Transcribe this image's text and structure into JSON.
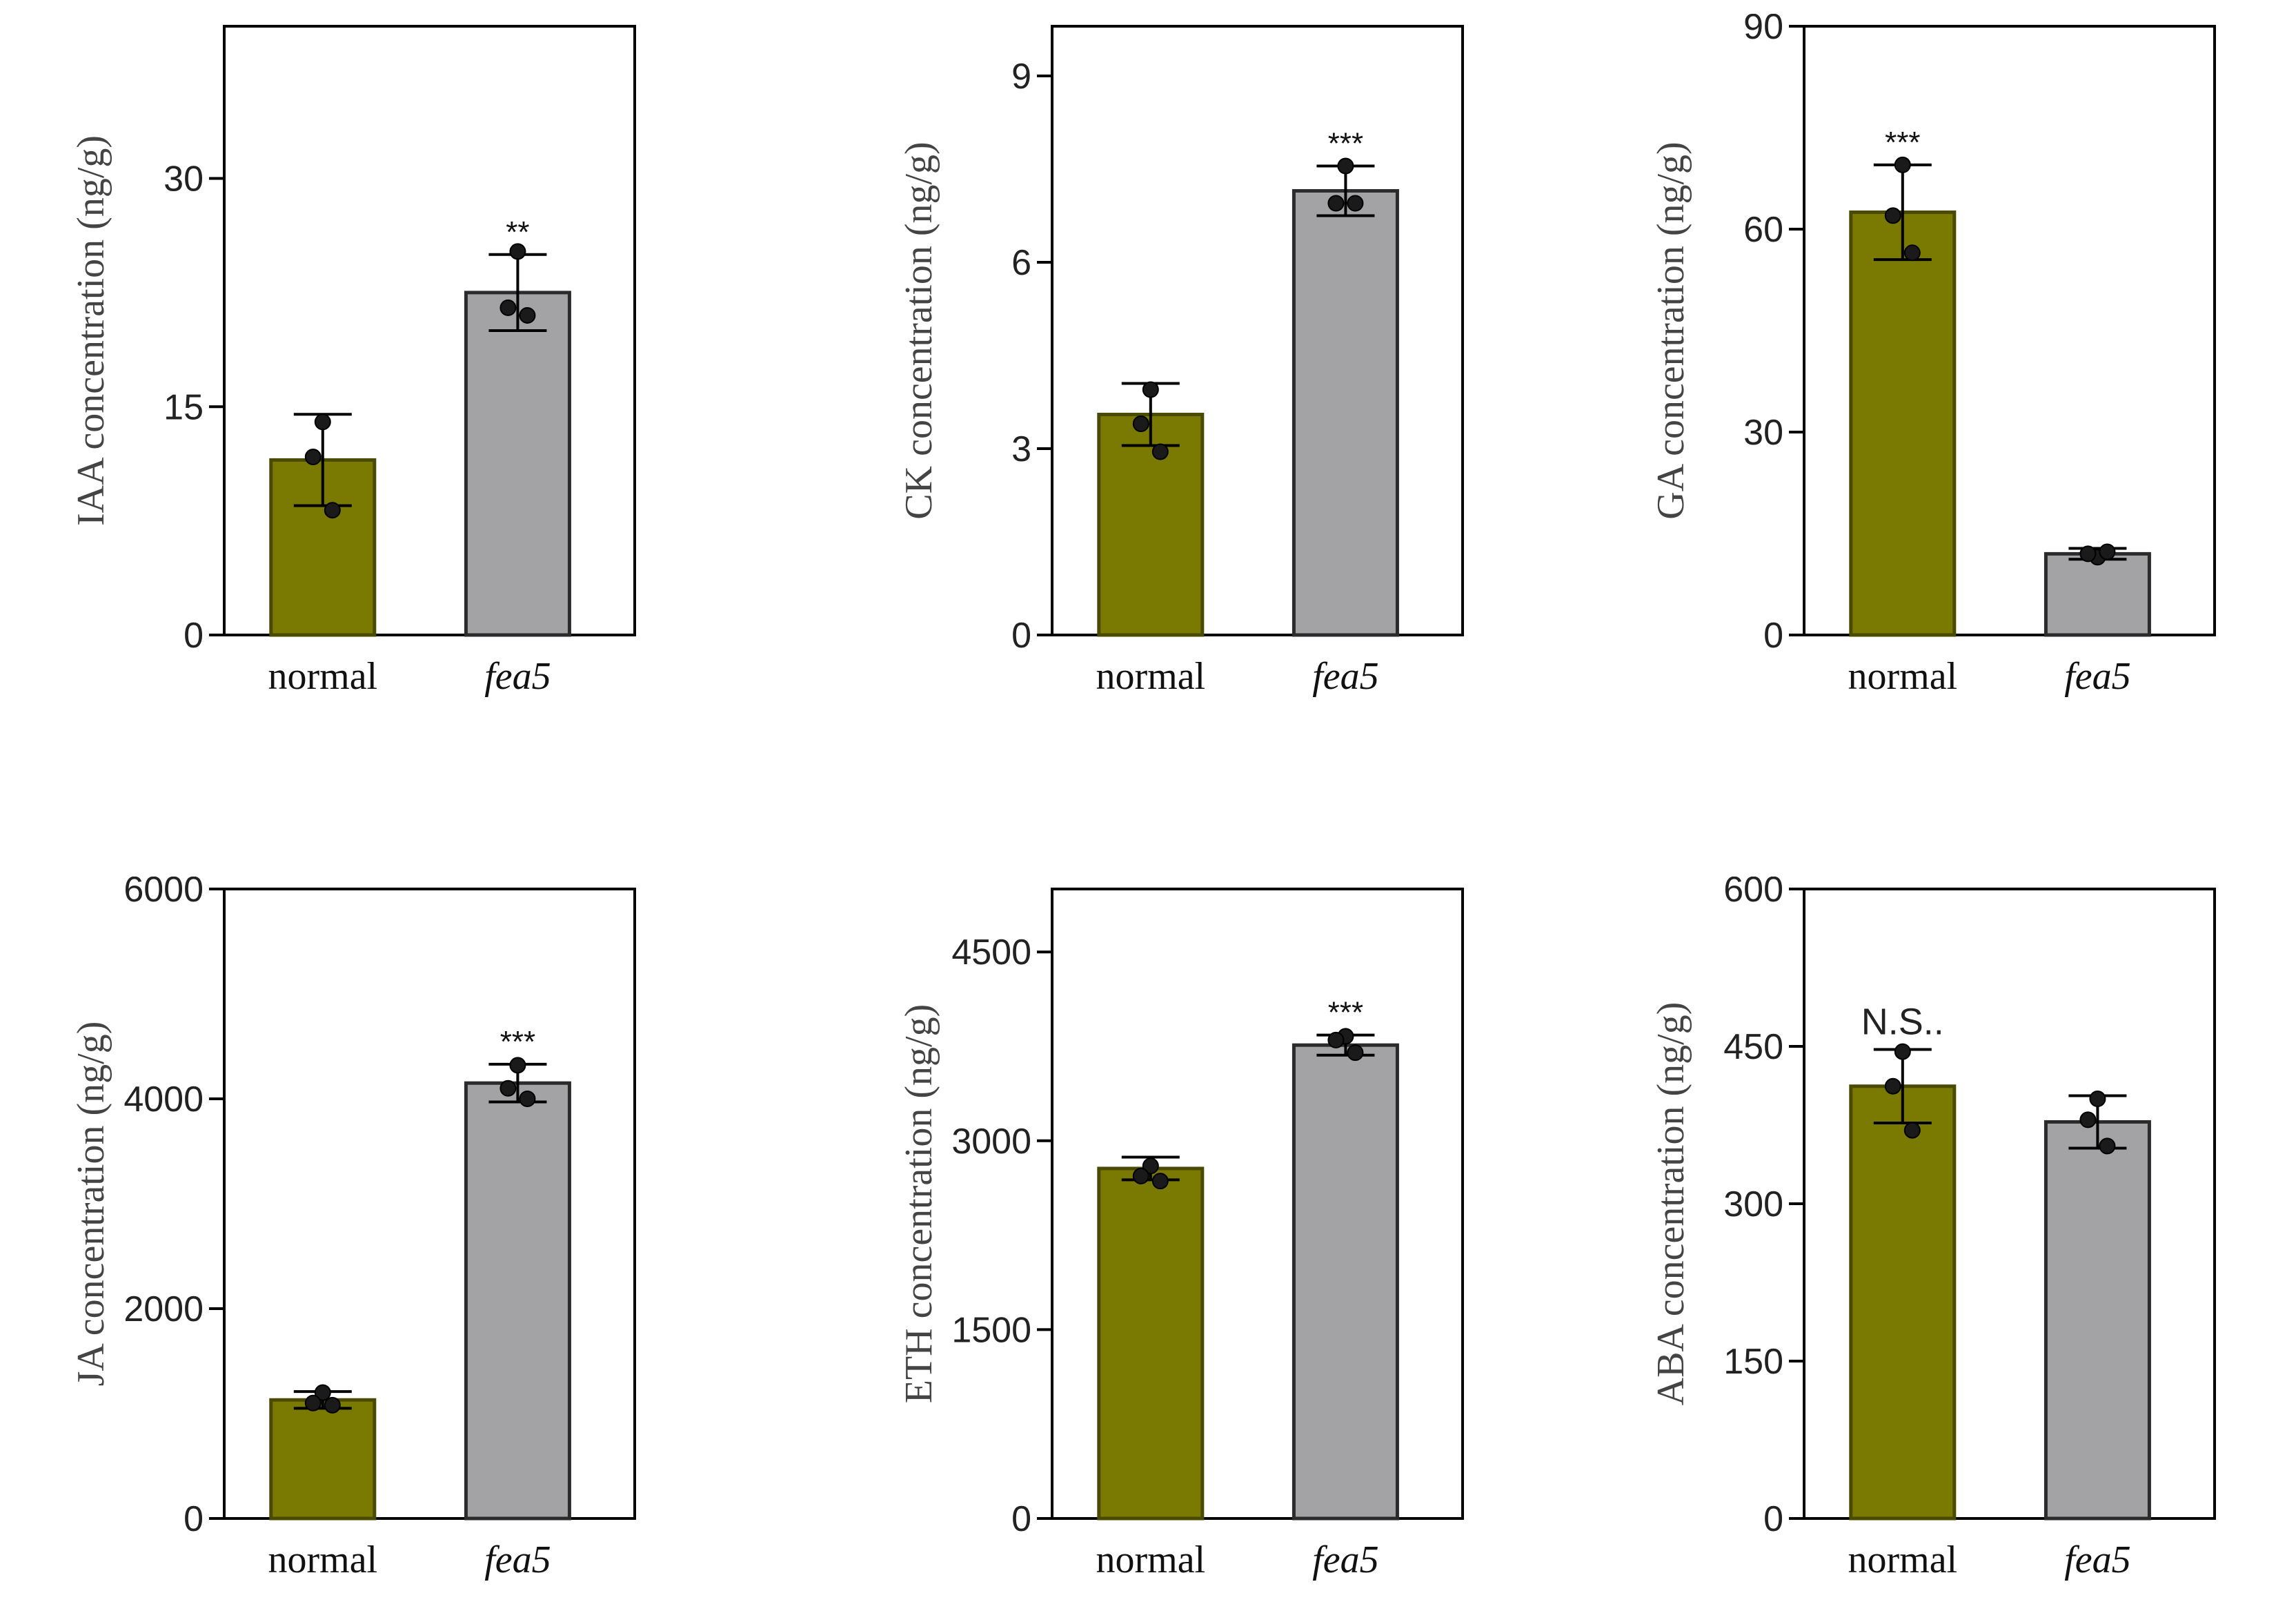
{
  "figure": {
    "colors": {
      "normal": "#7a7a02",
      "normal_edge": "#4a4a00",
      "mutant": "#a3a3a6",
      "mutant_edge": "#2b2b2b",
      "point": "#1a1a1a"
    }
  },
  "chart_data": [
    {
      "type": "bar",
      "id": "iaa",
      "categories": [
        "normal",
        "fea5"
      ],
      "values": [
        11.5,
        22.5
      ],
      "error": [
        3.0,
        2.5
      ],
      "points": [
        [
          14,
          11.7,
          8.2
        ],
        [
          25.2,
          21.5,
          21.0
        ]
      ],
      "ylabel": "IAA concentration (ng/g)",
      "ylim": [
        0,
        40
      ],
      "yticks": [
        0,
        15,
        30
      ],
      "ytick_labels": [
        "0",
        "15",
        "30"
      ],
      "significance": [
        "",
        "**"
      ]
    },
    {
      "type": "bar",
      "id": "ck",
      "categories": [
        "normal",
        "fea5"
      ],
      "values": [
        3.55,
        7.15
      ],
      "error": [
        0.5,
        0.4
      ],
      "points": [
        [
          3.95,
          3.4,
          2.95
        ],
        [
          7.55,
          6.95,
          6.95
        ]
      ],
      "ylabel": "CK concentration (ng/g)",
      "ylim": [
        0,
        9.8
      ],
      "yticks": [
        0,
        3,
        6,
        9
      ],
      "ytick_labels": [
        "0",
        "3",
        "6",
        "9"
      ],
      "significance": [
        "",
        "***"
      ]
    },
    {
      "type": "bar",
      "id": "ga",
      "categories": [
        "normal",
        "fea5"
      ],
      "values": [
        62.5,
        12
      ],
      "error": [
        7,
        0.8
      ],
      "points": [
        [
          69.5,
          62,
          56.5
        ],
        [
          11.5,
          12,
          12.3
        ]
      ],
      "ylabel": "GA concentration (ng/g)",
      "ylim": [
        0,
        90
      ],
      "yticks": [
        0,
        30,
        60,
        90
      ],
      "ytick_labels": [
        "0",
        "30",
        "60",
        "90"
      ],
      "significance": [
        "***",
        ""
      ]
    },
    {
      "type": "bar",
      "id": "ja",
      "categories": [
        "normal",
        "fea5"
      ],
      "values": [
        1130,
        4150
      ],
      "error": [
        80,
        180
      ],
      "points": [
        [
          1200,
          1100,
          1080
        ],
        [
          4320,
          4100,
          4000
        ]
      ],
      "ylabel": "JA concentration (ng/g)",
      "ylim": [
        0,
        6000
      ],
      "yticks": [
        0,
        2000,
        4000,
        6000
      ],
      "ytick_labels": [
        "0",
        "2000",
        "4000",
        "6000"
      ],
      "significance": [
        "",
        "***"
      ]
    },
    {
      "type": "bar",
      "id": "eth",
      "categories": [
        "normal",
        "fea5"
      ],
      "values": [
        2780,
        3760
      ],
      "error": [
        90,
        80
      ],
      "points": [
        [
          2800,
          2720,
          2680
        ],
        [
          3830,
          3800,
          3700
        ]
      ],
      "ylabel": "ETH concentration (ng/g)",
      "ylim": [
        0,
        5000
      ],
      "yticks": [
        0,
        1500,
        3000,
        4500
      ],
      "ytick_labels": [
        "0",
        "1500",
        "3000",
        "4500"
      ],
      "significance": [
        "",
        "***"
      ]
    },
    {
      "type": "bar",
      "id": "aba",
      "categories": [
        "normal",
        "fea5"
      ],
      "values": [
        412,
        378
      ],
      "error": [
        35,
        25
      ],
      "points": [
        [
          445,
          412,
          370
        ],
        [
          400,
          380,
          355
        ]
      ],
      "ylabel": "ABA concentration (ng/g)",
      "ylim": [
        0,
        600
      ],
      "yticks": [
        0,
        150,
        300,
        450,
        600
      ],
      "ytick_labels": [
        "0",
        "150",
        "300",
        "450",
        "600"
      ],
      "significance": [
        "N.S..",
        ""
      ]
    }
  ]
}
